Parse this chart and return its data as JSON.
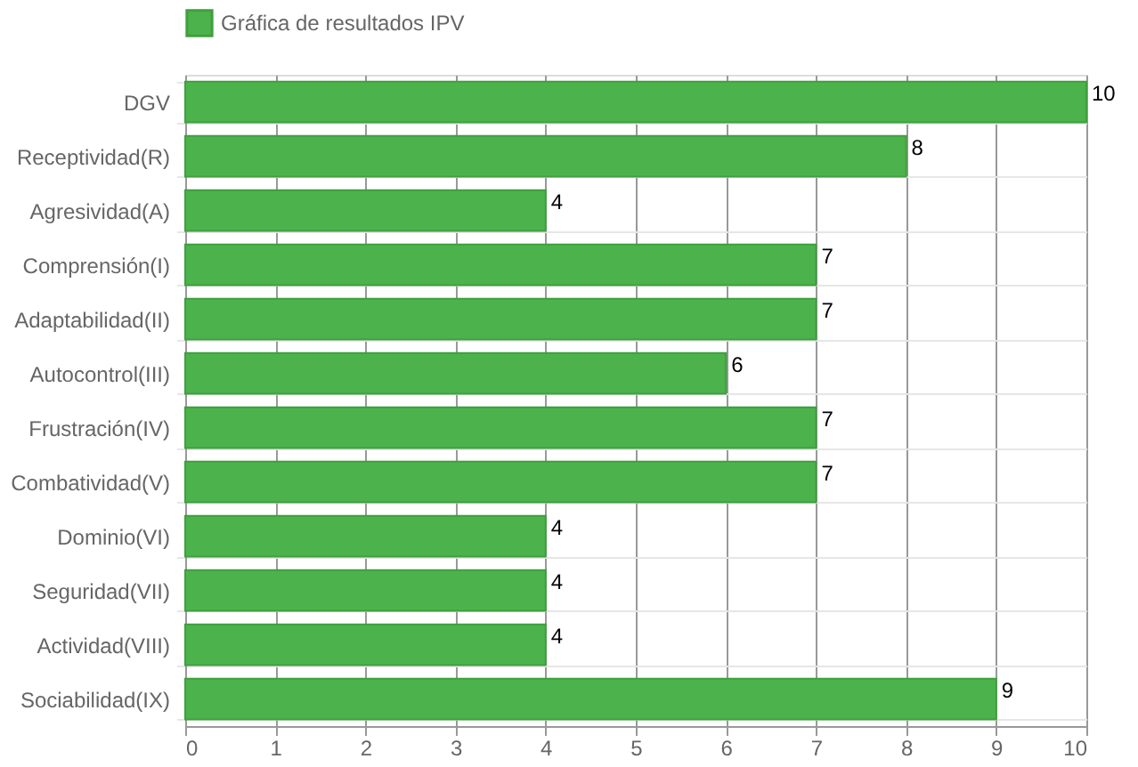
{
  "chart_data": {
    "type": "bar",
    "orientation": "horizontal",
    "categories": [
      "DGV",
      "Receptividad(R)",
      "Agresividad(A)",
      "Comprensión(I)",
      "Adaptabilidad(II)",
      "Autocontrol(III)",
      "Frustración(IV)",
      "Combatividad(V)",
      "Dominio(VI)",
      "Seguridad(VII)",
      "Actividad(VIII)",
      "Sociabilidad(IX)"
    ],
    "series": [
      {
        "name": "Gráfica de resultados IPV",
        "color": "#4cb34c",
        "values": [
          10,
          8,
          4,
          7,
          7,
          6,
          7,
          7,
          4,
          4,
          4,
          9
        ]
      }
    ],
    "xlim": [
      0,
      10
    ],
    "xticks": [
      0,
      1,
      2,
      3,
      4,
      5,
      6,
      7,
      8,
      9,
      10
    ],
    "grid": true,
    "legend": "top",
    "data_labels": true
  }
}
